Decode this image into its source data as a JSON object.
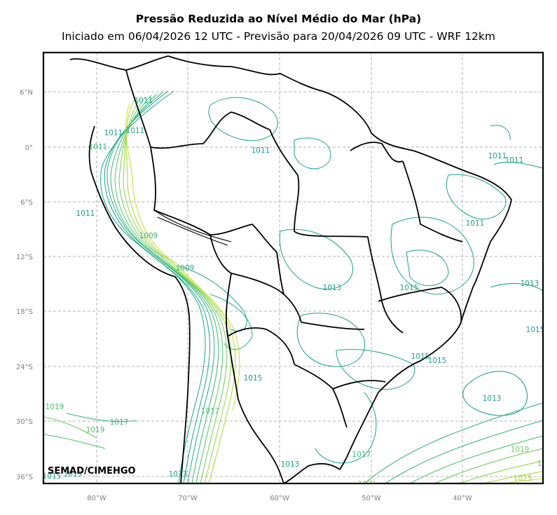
{
  "title": "Pressão Reduzida ao Nível Médio do Mar (hPa)",
  "subtitle": "Iniciado em 06/04/2026 12 UTC - Previsão para 20/04/2026 09 UTC - WRF 12km",
  "credit": "SEMAD/CIMEHGO",
  "lat_ticks": [
    "6°N",
    "0°",
    "6°S",
    "12°S",
    "18°S",
    "24°S",
    "30°S",
    "36°S"
  ],
  "lon_ticks": [
    "80°W",
    "70°W",
    "60°W",
    "50°W",
    "40°W"
  ],
  "isobar_labels": [
    "1011",
    "1011",
    "1011",
    "1011",
    "1011",
    "1011",
    "1011",
    "1011",
    "1011",
    "1009",
    "1009",
    "1013",
    "1013",
    "1015",
    "1015",
    "1015",
    "1015",
    "1015",
    "1013",
    "1019",
    "1019",
    "1017",
    "1017",
    "1013",
    "1019",
    "1025",
    "1015",
    "1015",
    "1013",
    "1017",
    "1019",
    "1021"
  ],
  "colors": {
    "frame": "#000000",
    "grid": "#b0b0b0",
    "isobar_low": "#1aa38a",
    "isobar_mid": "#35b779",
    "isobar_high": "#8fd744",
    "isobar_max": "#c8e020",
    "borders": "#000000"
  }
}
